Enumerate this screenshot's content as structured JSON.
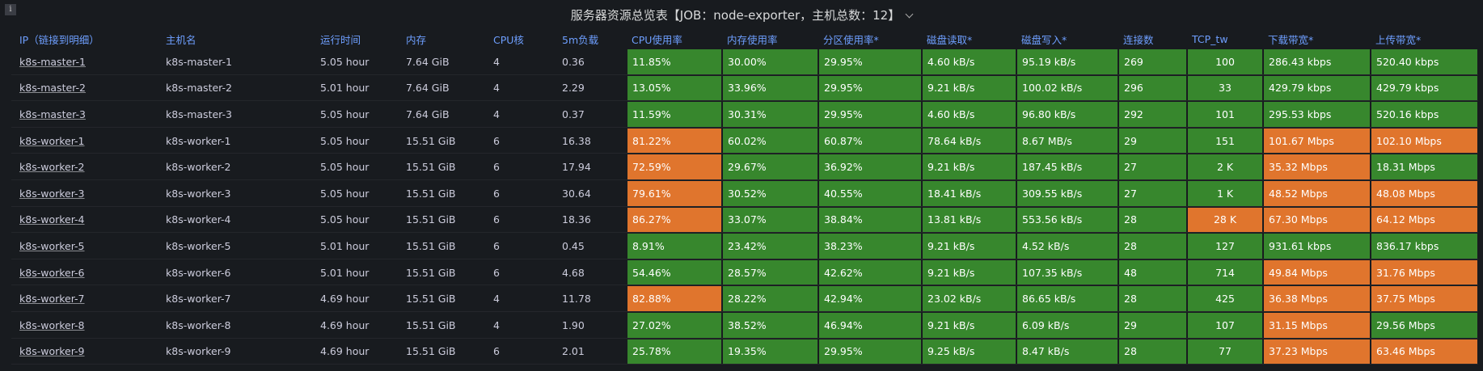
{
  "header": {
    "title": "服务器资源总览表【JOB：node-exporter，主机总数：12】",
    "info_icon": "i"
  },
  "table": {
    "headers": [
      "IP（链接到明细）",
      "主机名",
      "运行时间",
      "内存",
      "CPU核",
      "5m负载",
      "CPU使用率",
      "内存使用率",
      "分区使用率*",
      "磁盘读取*",
      "磁盘写入*",
      "连接数",
      "TCP_tw",
      "下载带宽*",
      "上传带宽*"
    ],
    "rows": [
      [
        "k8s-master-1",
        "k8s-master-1",
        "5.05 hour",
        "7.64 GiB",
        "4",
        "0.36",
        "11.85%",
        "30.00%",
        "29.95%",
        "4.60 kB/s",
        "95.19 kB/s",
        "269",
        "100",
        "286.43 kbps",
        "520.40 kbps"
      ],
      [
        "k8s-master-2",
        "k8s-master-2",
        "5.01 hour",
        "7.64 GiB",
        "4",
        "2.29",
        "13.05%",
        "33.96%",
        "29.95%",
        "9.21 kB/s",
        "100.02 kB/s",
        "296",
        "33",
        "429.79 kbps",
        "429.79 kbps"
      ],
      [
        "k8s-master-3",
        "k8s-master-3",
        "5.05 hour",
        "7.64 GiB",
        "4",
        "0.37",
        "11.59%",
        "30.31%",
        "29.95%",
        "4.60 kB/s",
        "96.80 kB/s",
        "292",
        "101",
        "295.53 kbps",
        "520.16 kbps"
      ],
      [
        "k8s-worker-1",
        "k8s-worker-1",
        "5.05 hour",
        "15.51 GiB",
        "6",
        "16.38",
        "81.22%",
        "60.02%",
        "60.87%",
        "78.64 kB/s",
        "8.67 MB/s",
        "29",
        "151",
        "101.67 Mbps",
        "102.10 Mbps"
      ],
      [
        "k8s-worker-2",
        "k8s-worker-2",
        "5.05 hour",
        "15.51 GiB",
        "6",
        "17.94",
        "72.59%",
        "29.67%",
        "36.92%",
        "9.21 kB/s",
        "187.45 kB/s",
        "27",
        "2 K",
        "35.32 Mbps",
        "18.31 Mbps"
      ],
      [
        "k8s-worker-3",
        "k8s-worker-3",
        "5.05 hour",
        "15.51 GiB",
        "6",
        "30.64",
        "79.61%",
        "30.52%",
        "40.55%",
        "18.41 kB/s",
        "309.55 kB/s",
        "27",
        "1 K",
        "48.52 Mbps",
        "48.08 Mbps"
      ],
      [
        "k8s-worker-4",
        "k8s-worker-4",
        "5.05 hour",
        "15.51 GiB",
        "6",
        "18.36",
        "86.27%",
        "33.07%",
        "38.84%",
        "13.81 kB/s",
        "553.56 kB/s",
        "28",
        "28 K",
        "67.30 Mbps",
        "64.12 Mbps"
      ],
      [
        "k8s-worker-5",
        "k8s-worker-5",
        "5.01 hour",
        "15.51 GiB",
        "6",
        "0.45",
        "8.91%",
        "23.42%",
        "38.23%",
        "9.21 kB/s",
        "4.52 kB/s",
        "28",
        "127",
        "931.61 kbps",
        "836.17 kbps"
      ],
      [
        "k8s-worker-6",
        "k8s-worker-6",
        "5.01 hour",
        "15.51 GiB",
        "6",
        "4.68",
        "54.46%",
        "28.57%",
        "42.62%",
        "9.21 kB/s",
        "107.35 kB/s",
        "48",
        "714",
        "49.84 Mbps",
        "31.76 Mbps"
      ],
      [
        "k8s-worker-7",
        "k8s-worker-7",
        "4.69 hour",
        "15.51 GiB",
        "4",
        "11.78",
        "82.88%",
        "28.22%",
        "42.94%",
        "23.02 kB/s",
        "86.65 kB/s",
        "28",
        "425",
        "36.38 Mbps",
        "37.75 Mbps"
      ],
      [
        "k8s-worker-8",
        "k8s-worker-8",
        "4.69 hour",
        "15.51 GiB",
        "4",
        "1.90",
        "27.02%",
        "38.52%",
        "46.94%",
        "9.21 kB/s",
        "6.09 kB/s",
        "29",
        "107",
        "31.15 Mbps",
        "29.56 Mbps"
      ],
      [
        "k8s-worker-9",
        "k8s-worker-9",
        "4.69 hour",
        "15.51 GiB",
        "6",
        "2.01",
        "25.78%",
        "19.35%",
        "29.95%",
        "9.25 kB/s",
        "8.47 kB/s",
        "28",
        "77",
        "37.23 Mbps",
        "63.46 Mbps"
      ]
    ],
    "cell_colors": [
      [
        null,
        null,
        null,
        null,
        null,
        null,
        "#37872d",
        "#37872d",
        "#37872d",
        "#37872d",
        "#37872d",
        "#37872d",
        "#37872d",
        "#37872d",
        "#37872d"
      ],
      [
        null,
        null,
        null,
        null,
        null,
        null,
        "#37872d",
        "#37872d",
        "#37872d",
        "#37872d",
        "#37872d",
        "#37872d",
        "#37872d",
        "#37872d",
        "#37872d"
      ],
      [
        null,
        null,
        null,
        null,
        null,
        null,
        "#37872d",
        "#37872d",
        "#37872d",
        "#37872d",
        "#37872d",
        "#37872d",
        "#37872d",
        "#37872d",
        "#37872d"
      ],
      [
        null,
        null,
        null,
        null,
        null,
        null,
        "#e0752d",
        "#37872d",
        "#37872d",
        "#37872d",
        "#37872d",
        "#37872d",
        "#37872d",
        "#e0752d",
        "#e0752d"
      ],
      [
        null,
        null,
        null,
        null,
        null,
        null,
        "#e0752d",
        "#37872d",
        "#37872d",
        "#37872d",
        "#37872d",
        "#37872d",
        "#37872d",
        "#e0752d",
        "#37872d"
      ],
      [
        null,
        null,
        null,
        null,
        null,
        null,
        "#e0752d",
        "#37872d",
        "#37872d",
        "#37872d",
        "#37872d",
        "#37872d",
        "#37872d",
        "#e0752d",
        "#e0752d"
      ],
      [
        null,
        null,
        null,
        null,
        null,
        null,
        "#e0752d",
        "#37872d",
        "#37872d",
        "#37872d",
        "#37872d",
        "#37872d",
        "#e0752d",
        "#e0752d",
        "#e0752d"
      ],
      [
        null,
        null,
        null,
        null,
        null,
        null,
        "#37872d",
        "#37872d",
        "#37872d",
        "#37872d",
        "#37872d",
        "#37872d",
        "#37872d",
        "#37872d",
        "#37872d"
      ],
      [
        null,
        null,
        null,
        null,
        null,
        null,
        "#37872d",
        "#37872d",
        "#37872d",
        "#37872d",
        "#37872d",
        "#37872d",
        "#37872d",
        "#e0752d",
        "#e0752d"
      ],
      [
        null,
        null,
        null,
        null,
        null,
        null,
        "#e0752d",
        "#37872d",
        "#37872d",
        "#37872d",
        "#37872d",
        "#37872d",
        "#37872d",
        "#e0752d",
        "#e0752d"
      ],
      [
        null,
        null,
        null,
        null,
        null,
        null,
        "#37872d",
        "#37872d",
        "#37872d",
        "#37872d",
        "#37872d",
        "#37872d",
        "#37872d",
        "#e0752d",
        "#37872d"
      ],
      [
        null,
        null,
        null,
        null,
        null,
        null,
        "#37872d",
        "#37872d",
        "#37872d",
        "#37872d",
        "#37872d",
        "#37872d",
        "#37872d",
        "#e0752d",
        "#e0752d"
      ]
    ]
  }
}
